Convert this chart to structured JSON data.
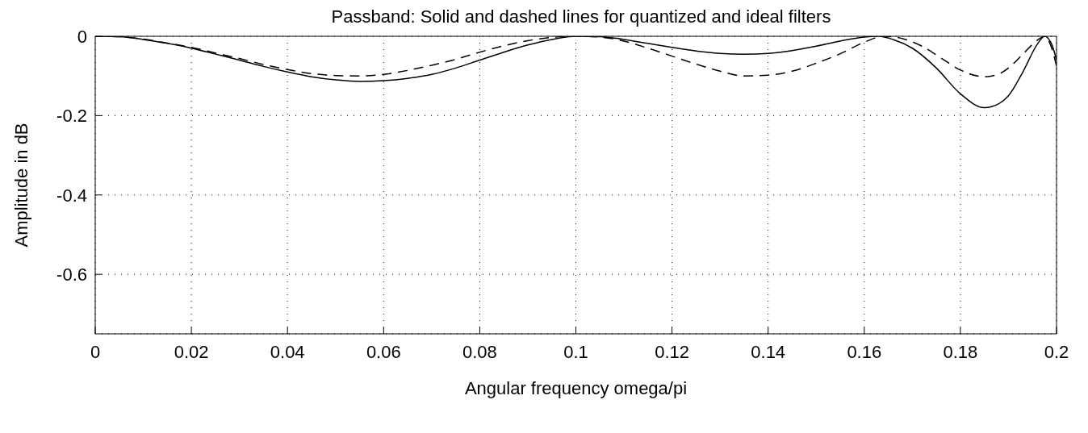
{
  "chart_data": {
    "type": "line",
    "title": "Passband: Solid and dashed lines for quantized and ideal filters",
    "xlabel": "Angular frequency omega/pi",
    "ylabel": "Amplitude in dB",
    "xlim": [
      0,
      0.2
    ],
    "xticks": [
      0,
      0.02,
      0.04,
      0.06,
      0.08,
      0.1,
      0.12,
      0.14,
      0.16,
      0.18,
      0.2
    ],
    "ylim": [
      -0.75,
      0
    ],
    "yticks": [
      0,
      -0.2,
      -0.4,
      -0.6
    ],
    "grid": true,
    "marker": "none",
    "series": [
      {
        "color": "#000000",
        "line_style": "solid",
        "x": [
          0,
          0.005,
          0.01,
          0.015,
          0.02,
          0.025,
          0.03,
          0.035,
          0.04,
          0.045,
          0.05,
          0.055,
          0.06,
          0.065,
          0.07,
          0.075,
          0.08,
          0.085,
          0.09,
          0.095,
          0.1,
          0.105,
          0.11,
          0.115,
          0.12,
          0.125,
          0.13,
          0.135,
          0.14,
          0.145,
          0.15,
          0.155,
          0.16,
          0.163,
          0.166,
          0.17,
          0.175,
          0.18,
          0.185,
          0.188,
          0.19,
          0.193,
          0.196,
          0.1975,
          0.199,
          0.2
        ],
        "values": [
          0,
          -0.001,
          -0.008,
          -0.018,
          -0.03,
          -0.045,
          -0.06,
          -0.076,
          -0.09,
          -0.102,
          -0.11,
          -0.114,
          -0.112,
          -0.106,
          -0.096,
          -0.08,
          -0.06,
          -0.04,
          -0.022,
          -0.008,
          0,
          -0.001,
          -0.008,
          -0.018,
          -0.028,
          -0.037,
          -0.043,
          -0.045,
          -0.043,
          -0.036,
          -0.025,
          -0.012,
          -0.002,
          0,
          -0.008,
          -0.03,
          -0.08,
          -0.145,
          -0.18,
          -0.17,
          -0.15,
          -0.09,
          -0.02,
          0,
          -0.02,
          -0.06
        ]
      },
      {
        "color": "#000000",
        "line_style": "dashed",
        "x": [
          0,
          0.005,
          0.01,
          0.015,
          0.02,
          0.025,
          0.03,
          0.035,
          0.04,
          0.045,
          0.05,
          0.055,
          0.06,
          0.065,
          0.07,
          0.075,
          0.08,
          0.085,
          0.09,
          0.095,
          0.1,
          0.105,
          0.11,
          0.115,
          0.12,
          0.125,
          0.13,
          0.135,
          0.14,
          0.145,
          0.15,
          0.155,
          0.16,
          0.164,
          0.168,
          0.172,
          0.176,
          0.18,
          0.185,
          0.188,
          0.19,
          0.193,
          0.196,
          0.1975,
          0.199,
          0.2
        ],
        "values": [
          0,
          -0.001,
          -0.007,
          -0.017,
          -0.028,
          -0.042,
          -0.056,
          -0.071,
          -0.084,
          -0.094,
          -0.099,
          -0.1,
          -0.096,
          -0.086,
          -0.073,
          -0.058,
          -0.04,
          -0.024,
          -0.011,
          -0.003,
          0,
          -0.002,
          -0.012,
          -0.03,
          -0.05,
          -0.07,
          -0.088,
          -0.1,
          -0.098,
          -0.088,
          -0.068,
          -0.044,
          -0.015,
          0,
          -0.006,
          -0.025,
          -0.055,
          -0.085,
          -0.102,
          -0.095,
          -0.08,
          -0.045,
          -0.01,
          0,
          -0.03,
          -0.075
        ]
      }
    ]
  }
}
